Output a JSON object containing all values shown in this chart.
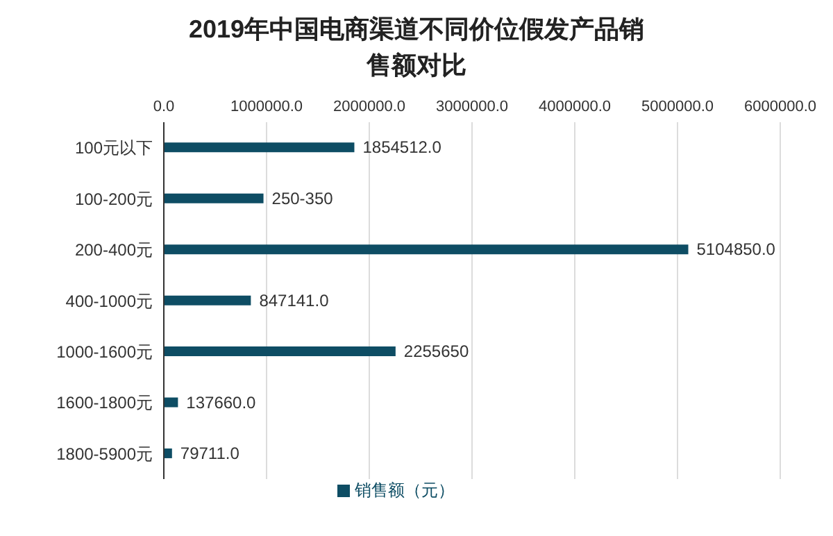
{
  "chart_data": {
    "type": "bar",
    "orientation": "horizontal",
    "title": "2019年中国电商渠道不同价位假发产品销售额对比",
    "categories": [
      "100元以下",
      "100-200元",
      "200-400元",
      "400-1000元",
      "1000-1600元",
      "1600-1800元",
      "1800-5900元"
    ],
    "series": [
      {
        "name": "销售额（元）",
        "color": "#0e4d64",
        "values": [
          1854512,
          970000,
          5104850,
          847141,
          2255650,
          137660,
          79711
        ],
        "value_labels": [
          "1854512.0",
          "250-350",
          "5104850.0",
          "847141.0",
          "2255650",
          "137660.0",
          "79711.0"
        ]
      }
    ],
    "xlim": [
      0,
      6000000
    ],
    "xticks": [
      {
        "value": 0,
        "label": "0.0"
      },
      {
        "value": 1000000,
        "label": "1000000.0"
      },
      {
        "value": 2000000,
        "label": "2000000.0"
      },
      {
        "value": 3000000,
        "label": "3000000.0"
      },
      {
        "value": 4000000,
        "label": "4000000.0"
      },
      {
        "value": 5000000,
        "label": "5000000.0"
      },
      {
        "value": 6000000,
        "label": "6000000.0"
      }
    ],
    "grid": "x",
    "legend": "bottom"
  }
}
